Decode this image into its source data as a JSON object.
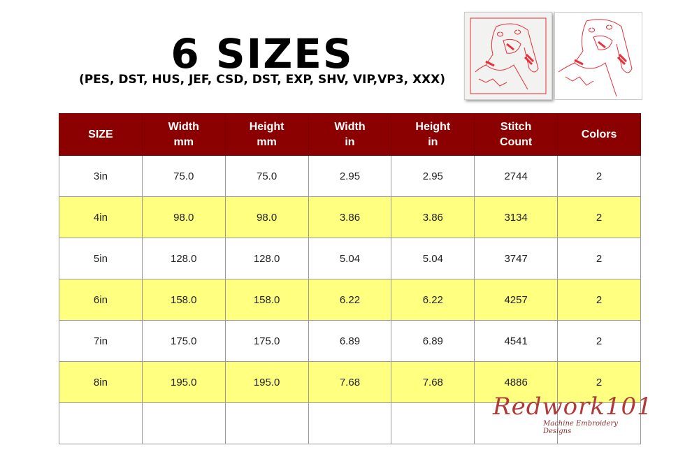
{
  "title": "6 SIZES",
  "formats": "(PES, DST, HUS, JEF, CSD, DST, EXP, SHV, VIP,VP3, XXX)",
  "colors": {
    "header_bg": "#8b0000",
    "highlight_row": "#ffff80",
    "stitch": "#e8303a"
  },
  "table": {
    "headers": [
      [
        "SIZE",
        ""
      ],
      [
        "Width",
        "mm"
      ],
      [
        "Height",
        "mm"
      ],
      [
        "Width",
        "in"
      ],
      [
        "Height",
        "in"
      ],
      [
        "Stitch",
        "Count"
      ],
      [
        "Colors",
        ""
      ]
    ],
    "rows": [
      [
        "3in",
        "75.0",
        "75.0",
        "2.95",
        "2.95",
        "2744",
        "2"
      ],
      [
        "4in",
        "98.0",
        "98.0",
        "3.86",
        "3.86",
        "3134",
        "2"
      ],
      [
        "5in",
        "128.0",
        "128.0",
        "5.04",
        "5.04",
        "3747",
        "2"
      ],
      [
        "6in",
        "158.0",
        "158.0",
        "6.22",
        "6.22",
        "4257",
        "2"
      ],
      [
        "7in",
        "175.0",
        "175.0",
        "6.89",
        "6.89",
        "4541",
        "2"
      ],
      [
        "8in",
        "195.0",
        "195.0",
        "7.68",
        "7.68",
        "4886",
        "2"
      ]
    ]
  },
  "logo": {
    "name": "Redwork101",
    "tagline": "Machine Embroidery Designs"
  }
}
